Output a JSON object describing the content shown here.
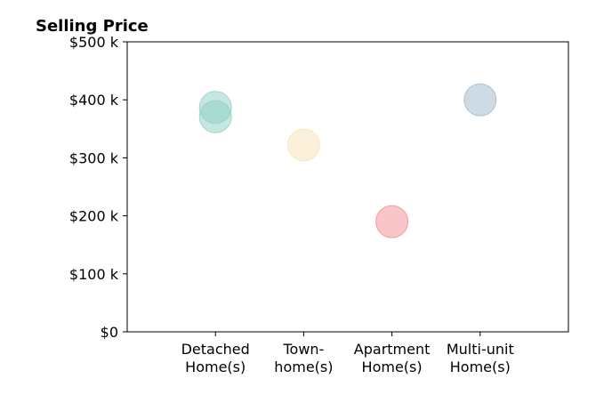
{
  "chart_data": {
    "type": "scatter",
    "title": "Selling Price",
    "xlabel": "",
    "ylabel": "",
    "categories": [
      [
        "Detached",
        "Home(s)"
      ],
      [
        "Town-",
        "home(s)"
      ],
      [
        "Apartment",
        "Home(s)"
      ],
      [
        "Multi-unit",
        "Home(s)"
      ]
    ],
    "points": [
      {
        "category_index": 0,
        "value": 387000,
        "color": "#8ecfc3"
      },
      {
        "category_index": 0,
        "value": 371000,
        "color": "#8ecfc3"
      },
      {
        "category_index": 1,
        "value": 322000,
        "color": "#f8e2b6"
      },
      {
        "category_index": 2,
        "value": 190000,
        "color": "#f28b94"
      },
      {
        "category_index": 3,
        "value": 400000,
        "color": "#9db8cb"
      }
    ],
    "ylim": [
      0,
      500000
    ],
    "yticks": [
      0,
      100000,
      200000,
      300000,
      400000,
      500000
    ],
    "ytick_labels": [
      "$0",
      "$100 k",
      "$200 k",
      "$300 k",
      "$400 k",
      "$500 k"
    ],
    "xlim": [
      -1,
      4
    ],
    "grid": false,
    "legend": "none"
  }
}
